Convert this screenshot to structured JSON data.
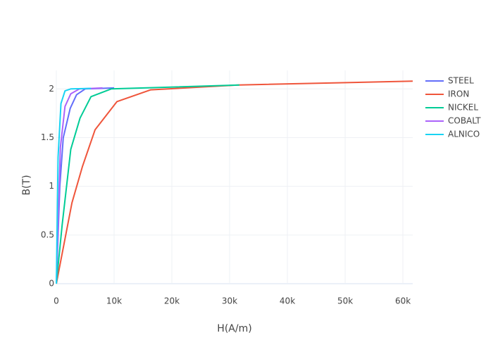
{
  "chart_data": {
    "type": "line",
    "xlabel": "H(A/m)",
    "ylabel": "B(T)",
    "xlim": [
      0,
      61700
    ],
    "ylim": [
      0,
      2.19
    ],
    "xticks": [
      0,
      {
        "value": 10000,
        "label": "10k"
      },
      {
        "value": 20000,
        "label": "20k"
      },
      {
        "value": 30000,
        "label": "30k"
      },
      {
        "value": 40000,
        "label": "40k"
      },
      {
        "value": 50000,
        "label": "50k"
      },
      {
        "value": 60000,
        "label": "60k"
      }
    ],
    "yticks": [
      0,
      0.5,
      1,
      1.5,
      2
    ],
    "grid": true,
    "legend": "right",
    "series": [
      {
        "name": "STEEL",
        "color": "#636efa",
        "x": [
          0,
          600,
          1200,
          2400,
          3500,
          5000,
          10000
        ],
        "values": [
          0,
          1.0,
          1.5,
          1.8,
          1.94,
          2.0,
          2.01
        ]
      },
      {
        "name": "IRON",
        "color": "#ef553b",
        "x": [
          0,
          2700,
          4500,
          6700,
          10500,
          16300,
          31500,
          61700
        ],
        "values": [
          0,
          0.83,
          1.2,
          1.58,
          1.87,
          1.99,
          2.04,
          2.08
        ]
      },
      {
        "name": "NICKEL",
        "color": "#00cc96",
        "x": [
          0,
          1000,
          2500,
          4100,
          6000,
          9500,
          31700
        ],
        "values": [
          0,
          0.6,
          1.38,
          1.7,
          1.92,
          2.0,
          2.04
        ]
      },
      {
        "name": "COBALT",
        "color": "#ab63fa",
        "x": [
          0,
          700,
          1500,
          2500,
          4000,
          8000
        ],
        "values": [
          0,
          1.4,
          1.82,
          1.95,
          2.0,
          2.01
        ]
      },
      {
        "name": "ALNICO",
        "color": "#19d3f3",
        "x": [
          0,
          300,
          800,
          1500,
          2500,
          6000
        ],
        "values": [
          0,
          1.3,
          1.85,
          1.98,
          2.0,
          2.005
        ]
      }
    ]
  }
}
